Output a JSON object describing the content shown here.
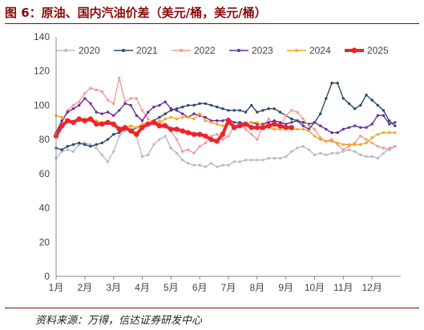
{
  "title": "图 6：原油、国内汽油价差（美元/桶，美元/桶）",
  "source": "资料来源：万得，信达证券研发中心",
  "chart_data": {
    "type": "line",
    "title": "",
    "xlabel": "",
    "ylabel": "",
    "ylim": [
      0,
      140
    ],
    "yticks": [
      0,
      20,
      40,
      60,
      80,
      100,
      120,
      140
    ],
    "xlim": [
      1,
      13
    ],
    "xticks": [
      {
        "label": "1月",
        "value": 1
      },
      {
        "label": "2月",
        "value": 2
      },
      {
        "label": "3月",
        "value": 3
      },
      {
        "label": "4月",
        "value": 4
      },
      {
        "label": "5月",
        "value": 5
      },
      {
        "label": "6月",
        "value": 6
      },
      {
        "label": "7月",
        "value": 7
      },
      {
        "label": "8月",
        "value": 8
      },
      {
        "label": "9月",
        "value": 9
      },
      {
        "label": "10月",
        "value": 10
      },
      {
        "label": "11月",
        "value": 11
      },
      {
        "label": "12月",
        "value": 12
      }
    ],
    "grid": false,
    "legend": "top",
    "series": [
      {
        "name": "2020",
        "color": "#b4bccd",
        "marker": "circle",
        "x": [
          1.0,
          1.2,
          1.4,
          1.6,
          1.8,
          2.0,
          2.2,
          2.4,
          2.6,
          2.8,
          3.0,
          3.2,
          3.4,
          3.6,
          3.8,
          4.0,
          4.2,
          4.4,
          4.6,
          4.8,
          5.0,
          5.2,
          5.4,
          5.6,
          5.8,
          6.0,
          6.2,
          6.4,
          6.6,
          6.8,
          7.0,
          7.2,
          7.4,
          7.6,
          7.8,
          8.0,
          8.2,
          8.4,
          8.6,
          8.8,
          9.0,
          9.2,
          9.4,
          9.6,
          9.8,
          10.0,
          10.2,
          10.4,
          10.6,
          10.8,
          11.0,
          11.2,
          11.4,
          11.6,
          11.8,
          12.0,
          12.2,
          12.4,
          12.6,
          12.8
        ],
        "y": [
          69,
          73,
          74,
          73,
          77,
          78,
          77,
          75,
          71,
          67,
          73,
          82,
          85,
          88,
          82,
          70,
          71,
          77,
          80,
          82,
          75,
          72,
          68,
          66,
          65,
          65,
          64,
          66,
          64,
          65,
          65,
          67,
          67,
          68,
          68,
          68,
          68,
          69,
          69,
          69,
          70,
          73,
          75,
          76,
          74,
          71,
          72,
          71,
          72,
          72,
          73,
          74,
          73,
          71,
          70,
          70,
          69,
          72,
          75,
          76
        ]
      },
      {
        "name": "2021",
        "color": "#2f4a6c",
        "marker": "circle",
        "x": [
          1.0,
          1.2,
          1.4,
          1.6,
          1.8,
          2.0,
          2.2,
          2.4,
          2.6,
          2.8,
          3.0,
          3.2,
          3.4,
          3.6,
          3.8,
          4.0,
          4.2,
          4.4,
          4.6,
          4.8,
          5.0,
          5.2,
          5.4,
          5.6,
          5.8,
          6.0,
          6.2,
          6.4,
          6.6,
          6.8,
          7.0,
          7.2,
          7.4,
          7.6,
          7.8,
          8.0,
          8.2,
          8.4,
          8.6,
          8.8,
          9.0,
          9.2,
          9.4,
          9.6,
          9.8,
          10.0,
          10.2,
          10.4,
          10.6,
          10.8,
          11.0,
          11.2,
          11.4,
          11.6,
          11.8,
          12.0,
          12.2,
          12.4,
          12.6,
          12.8
        ],
        "y": [
          75,
          74,
          76,
          77,
          78,
          77,
          76,
          77,
          78,
          80,
          83,
          84,
          86,
          85,
          87,
          88,
          89,
          91,
          93,
          95,
          97,
          98,
          99,
          100,
          100,
          101,
          101,
          100,
          99,
          98,
          97,
          97,
          97,
          96,
          100,
          96,
          97,
          98,
          98,
          96,
          94,
          92,
          91,
          90,
          89,
          90,
          95,
          104,
          113,
          113,
          104,
          101,
          98,
          100,
          106,
          103,
          100,
          97,
          91,
          88
        ]
      },
      {
        "name": "2022",
        "color": "#f59a9a",
        "marker": "circle",
        "x": [
          1.0,
          1.2,
          1.4,
          1.6,
          1.8,
          2.0,
          2.2,
          2.4,
          2.6,
          2.8,
          3.0,
          3.2,
          3.4,
          3.6,
          3.8,
          4.0,
          4.2,
          4.4,
          4.6,
          4.8,
          5.0,
          5.2,
          5.4,
          5.6,
          5.8,
          6.0,
          6.2,
          6.4,
          6.6,
          6.8,
          7.0,
          7.2,
          7.4,
          7.6,
          7.8,
          8.0,
          8.2,
          8.4,
          8.6,
          8.8,
          9.0,
          9.2,
          9.4,
          9.6,
          9.8,
          10.0,
          10.2,
          10.4,
          10.6,
          10.8,
          11.0,
          11.2,
          11.4,
          11.6,
          11.8,
          12.0,
          12.2,
          12.4,
          12.6,
          12.8
        ],
        "y": [
          84,
          90,
          97,
          100,
          102,
          107,
          110,
          109,
          108,
          103,
          101,
          116,
          102,
          104,
          104,
          97,
          92,
          90,
          91,
          89,
          85,
          80,
          73,
          74,
          72,
          76,
          78,
          82,
          83,
          80,
          82,
          88,
          90,
          86,
          83,
          80,
          88,
          92,
          89,
          87,
          94,
          97,
          96,
          92,
          88,
          86,
          81,
          79,
          80,
          77,
          74,
          76,
          78,
          82,
          80,
          78,
          76,
          75,
          74,
          76
        ]
      },
      {
        "name": "2023",
        "color": "#6a2e9a",
        "marker": "circle",
        "x": [
          1.0,
          1.2,
          1.4,
          1.6,
          1.8,
          2.0,
          2.2,
          2.4,
          2.6,
          2.8,
          3.0,
          3.2,
          3.4,
          3.6,
          3.8,
          4.0,
          4.2,
          4.4,
          4.6,
          4.8,
          5.0,
          5.2,
          5.4,
          5.6,
          5.8,
          6.0,
          6.2,
          6.4,
          6.6,
          6.8,
          7.0,
          7.2,
          7.4,
          7.6,
          7.8,
          8.0,
          8.2,
          8.4,
          8.6,
          8.8,
          9.0,
          9.2,
          9.4,
          9.6,
          9.8,
          10.0,
          10.2,
          10.4,
          10.6,
          10.8,
          11.0,
          11.2,
          11.4,
          11.6,
          11.8,
          12.0,
          12.2,
          12.4,
          12.6,
          12.8
        ],
        "y": [
          84,
          91,
          96,
          98,
          100,
          104,
          101,
          96,
          95,
          96,
          94,
          97,
          101,
          100,
          94,
          91,
          96,
          99,
          100,
          102,
          98,
          97,
          95,
          93,
          95,
          94,
          93,
          91,
          91,
          91,
          92,
          90,
          90,
          89,
          90,
          89,
          89,
          90,
          91,
          90,
          89,
          90,
          91,
          88,
          86,
          90,
          88,
          86,
          84,
          84,
          86,
          87,
          88,
          87,
          87,
          89,
          94,
          94,
          89,
          90
        ]
      },
      {
        "name": "2024",
        "color": "#f5a623",
        "marker": "circle",
        "x": [
          1.0,
          1.2,
          1.4,
          1.6,
          1.8,
          2.0,
          2.2,
          2.4,
          2.6,
          2.8,
          3.0,
          3.2,
          3.4,
          3.6,
          3.8,
          4.0,
          4.2,
          4.4,
          4.6,
          4.8,
          5.0,
          5.2,
          5.4,
          5.6,
          5.8,
          6.0,
          6.2,
          6.4,
          6.6,
          6.8,
          7.0,
          7.2,
          7.4,
          7.6,
          7.8,
          8.0,
          8.2,
          8.4,
          8.6,
          8.8,
          9.0,
          9.2,
          9.4,
          9.6,
          9.8,
          10.0,
          10.2,
          10.4,
          10.6,
          10.8,
          11.0,
          11.2,
          11.4,
          11.6,
          11.8,
          12.0,
          12.2,
          12.4,
          12.6,
          12.8
        ],
        "y": [
          94,
          93,
          91,
          90,
          91,
          92,
          91,
          91,
          90,
          90,
          88,
          87,
          87,
          88,
          87,
          89,
          90,
          90,
          90,
          92,
          93,
          92,
          93,
          93,
          92,
          95,
          91,
          90,
          89,
          88,
          89,
          88,
          88,
          89,
          90,
          90,
          88,
          87,
          86,
          86,
          87,
          86,
          86,
          86,
          85,
          82,
          80,
          79,
          79,
          78,
          77,
          77,
          77,
          77,
          78,
          81,
          83,
          84,
          84,
          84
        ]
      },
      {
        "name": "2025",
        "color": "#f0222b",
        "marker": "circle",
        "emphasis": true,
        "x": [
          1.0,
          1.2,
          1.4,
          1.6,
          1.8,
          2.0,
          2.2,
          2.4,
          2.6,
          2.8,
          3.0,
          3.2,
          3.4,
          3.6,
          3.8,
          4.0,
          4.2,
          4.4,
          4.6,
          4.8,
          5.0,
          5.2,
          5.4,
          5.6,
          5.8,
          6.0,
          6.2,
          6.4,
          6.6,
          6.8,
          7.0,
          7.2,
          7.4,
          7.6,
          7.8,
          8.0,
          8.2,
          8.4,
          8.6,
          8.8,
          9.0,
          9.2
        ],
        "y": [
          82,
          88,
          91,
          90,
          92,
          91,
          92,
          89,
          89,
          90,
          89,
          86,
          87,
          85,
          83,
          87,
          89,
          90,
          88,
          88,
          86,
          86,
          85,
          84,
          83,
          83,
          82,
          80,
          79,
          83,
          91,
          87,
          88,
          89,
          87,
          87,
          87,
          88,
          89,
          88,
          87,
          87
        ]
      }
    ]
  }
}
